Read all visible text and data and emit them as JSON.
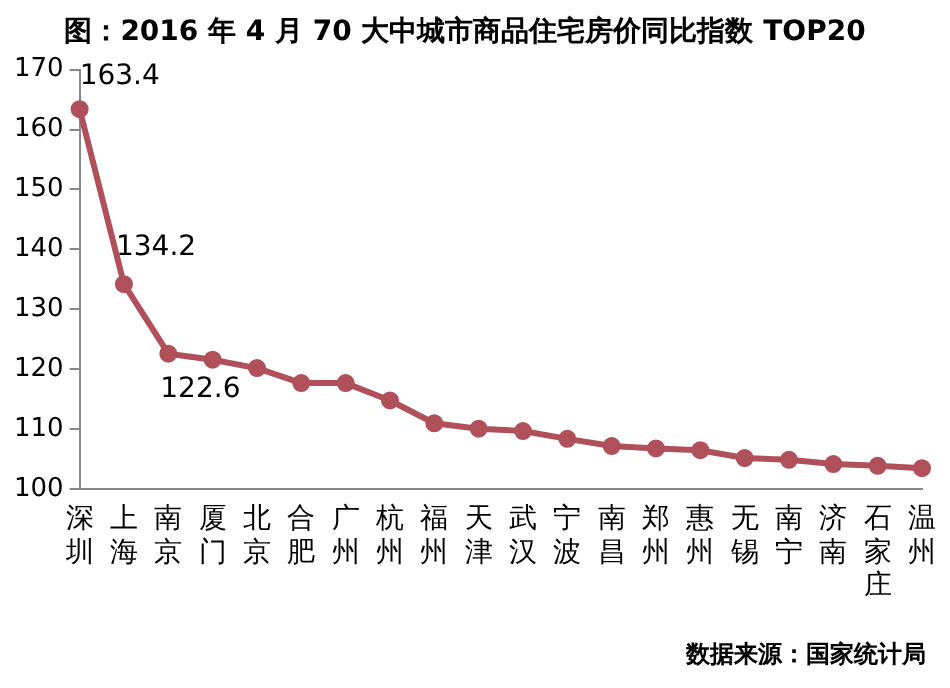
{
  "chart_data": {
    "type": "line",
    "title": "图：2016 年 4 月 70 大中城市商品住宅房价同比指数 TOP20",
    "categories": [
      "深圳",
      "上海",
      "南京",
      "厦门",
      "北京",
      "合肥",
      "广州",
      "杭州",
      "福州",
      "天津",
      "武汉",
      "宁波",
      "南昌",
      "郑州",
      "惠州",
      "无锡",
      "南宁",
      "济南",
      "石家庄",
      "温州"
    ],
    "series": [
      {
        "color": "#b0505a",
        "values": [
          163.4,
          134.2,
          122.6,
          121.6,
          120.2,
          117.7,
          117.7,
          114.8,
          111.0,
          110.1,
          109.7,
          108.4,
          107.2,
          106.8,
          106.5,
          105.2,
          104.9,
          104.2,
          103.9,
          103.5
        ],
        "value_labels": [
          "163.4",
          "134.2",
          "122.6",
          null,
          null,
          null,
          null,
          null,
          null,
          null,
          null,
          null,
          null,
          null,
          null,
          null,
          null,
          null,
          null,
          null
        ]
      }
    ],
    "ylim": [
      100,
      170
    ],
    "yticks": [
      100,
      110,
      120,
      130,
      140,
      150,
      160,
      170
    ],
    "grid": false,
    "legend": false,
    "marker": "circle",
    "line_style": "solid",
    "annotations": [
      "数据来源：国家统计局"
    ]
  }
}
